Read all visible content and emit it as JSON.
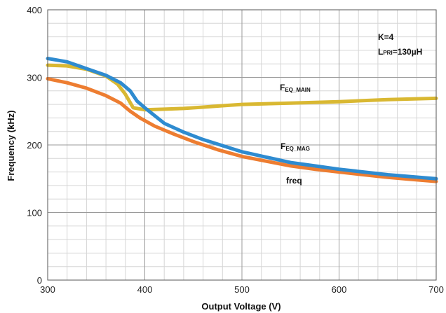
{
  "chart_data": {
    "type": "line",
    "xlabel": "Output Voltage (V)",
    "ylabel": "Frequency (kHz)",
    "xlim": [
      300,
      700
    ],
    "ylim": [
      0,
      400
    ],
    "x_ticks": [
      300,
      400,
      500,
      600,
      700
    ],
    "y_ticks": [
      0,
      100,
      200,
      300,
      400
    ],
    "grid": true,
    "series": [
      {
        "name": "freq",
        "color": "#ED7D31",
        "x": [
          300,
          320,
          340,
          360,
          375,
          385,
          395,
          410,
          430,
          450,
          475,
          500,
          525,
          550,
          575,
          600,
          625,
          650,
          675,
          700
        ],
        "y": [
          298,
          292,
          284,
          273,
          262,
          250,
          240,
          228,
          216,
          205,
          193,
          183,
          176,
          169,
          164,
          160,
          156,
          152,
          149,
          146
        ]
      },
      {
        "name": "F_EQ_MAG",
        "color": "#2E8BD0",
        "x": [
          300,
          320,
          340,
          360,
          375,
          385,
          392,
          400,
          420,
          440,
          460,
          480,
          500,
          525,
          550,
          575,
          600,
          625,
          650,
          675,
          700
        ],
        "y": [
          328,
          323,
          313,
          303,
          292,
          280,
          265,
          255,
          232,
          219,
          208,
          199,
          190,
          182,
          174,
          169,
          164,
          160,
          156,
          153,
          150
        ]
      },
      {
        "name": "F_EQ_MAIN",
        "color": "#D9B832",
        "x": [
          300,
          320,
          340,
          360,
          372,
          380,
          388,
          400,
          420,
          440,
          460,
          480,
          500,
          550,
          600,
          650,
          700
        ],
        "y": [
          318,
          317,
          312,
          302,
          290,
          275,
          255,
          252,
          253,
          254,
          256,
          258,
          260,
          262,
          264,
          267,
          269
        ]
      }
    ],
    "annotations": {
      "k_label": "K=4",
      "lpri_main": "L",
      "lpri_sub": "PRI",
      "lpri_value": "=130µH",
      "feq_main_main": "F",
      "feq_main_sub": "EQ_MAIN",
      "feq_mag_main": "F",
      "feq_mag_sub": "EQ_MAG",
      "freq_label": "freq"
    }
  }
}
